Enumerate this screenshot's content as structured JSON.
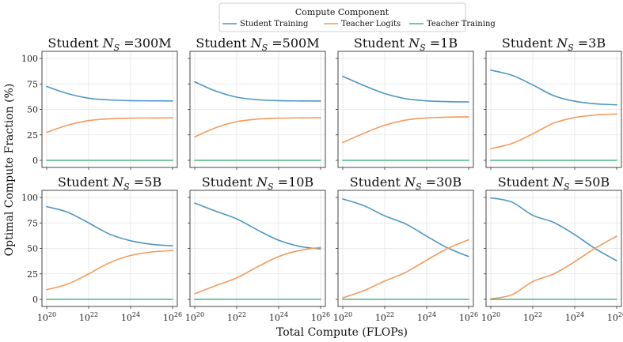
{
  "figure": {
    "xlabel": "Total Compute (FLOPs)",
    "ylabel": "Optimal Compute Fraction (%)"
  },
  "legend": {
    "title": "Compute Component",
    "entries": [
      {
        "name": "Student Training",
        "color": "#4f97c2"
      },
      {
        "name": "Teacher Logits",
        "color": "#f29b5c"
      },
      {
        "name": "Teacher Training",
        "color": "#4bb584"
      }
    ]
  },
  "chart_data": [
    {
      "type": "line",
      "title_prefix": "Student ",
      "title_var": "N",
      "title_sub": "S",
      "title_value": "=300M",
      "x": [
        20,
        21,
        22,
        23,
        24,
        25,
        26
      ],
      "xlim": [
        20,
        26
      ],
      "ylim": [
        0,
        100
      ],
      "xticks": [
        {
          "base": "10",
          "exp": "20"
        },
        {
          "base": "10",
          "exp": "22"
        },
        {
          "base": "10",
          "exp": "24"
        },
        {
          "base": "10",
          "exp": "26"
        }
      ],
      "yticks": [
        "0",
        "25",
        "50",
        "75",
        "100"
      ],
      "series": [
        {
          "name": "Student Training",
          "values": [
            72.5,
            65.5,
            61.0,
            59.3,
            58.6,
            58.4,
            58.3
          ]
        },
        {
          "name": "Teacher Logits",
          "values": [
            27.5,
            34.5,
            39.0,
            40.7,
            41.4,
            41.6,
            41.7
          ]
        },
        {
          "name": "Teacher Training",
          "values": [
            0,
            0,
            0,
            0,
            0,
            0,
            0
          ]
        }
      ]
    },
    {
      "type": "line",
      "title_prefix": "Student ",
      "title_var": "N",
      "title_sub": "S",
      "title_value": "=500M",
      "x": [
        20,
        21,
        22,
        23,
        24,
        25,
        26
      ],
      "xlim": [
        20,
        26
      ],
      "ylim": [
        0,
        100
      ],
      "xticks": [
        {
          "base": "10",
          "exp": "20"
        },
        {
          "base": "10",
          "exp": "22"
        },
        {
          "base": "10",
          "exp": "24"
        },
        {
          "base": "10",
          "exp": "26"
        }
      ],
      "yticks": [
        "0",
        "25",
        "50",
        "75",
        "100"
      ],
      "series": [
        {
          "name": "Student Training",
          "values": [
            77.0,
            68.0,
            62.0,
            59.5,
            58.6,
            58.3,
            58.2
          ]
        },
        {
          "name": "Teacher Logits",
          "values": [
            23.0,
            32.0,
            38.0,
            40.5,
            41.4,
            41.7,
            41.8
          ]
        },
        {
          "name": "Teacher Training",
          "values": [
            0,
            0,
            0,
            0,
            0,
            0,
            0
          ]
        }
      ]
    },
    {
      "type": "line",
      "title_prefix": "Student ",
      "title_var": "N",
      "title_sub": "S",
      "title_value": "=1B",
      "x": [
        20,
        21,
        22,
        23,
        24,
        25,
        26
      ],
      "xlim": [
        20,
        26
      ],
      "ylim": [
        0,
        100
      ],
      "xticks": [
        {
          "base": "10",
          "exp": "20"
        },
        {
          "base": "10",
          "exp": "22"
        },
        {
          "base": "10",
          "exp": "24"
        },
        {
          "base": "10",
          "exp": "26"
        }
      ],
      "yticks": [
        "0",
        "25",
        "50",
        "75",
        "100"
      ],
      "series": [
        {
          "name": "Student Training",
          "values": [
            82.5,
            73.5,
            65.5,
            60.5,
            58.4,
            57.6,
            57.3
          ]
        },
        {
          "name": "Teacher Logits",
          "values": [
            17.5,
            26.5,
            34.5,
            39.5,
            41.6,
            42.4,
            42.7
          ]
        },
        {
          "name": "Teacher Training",
          "values": [
            0,
            0,
            0,
            0,
            0,
            0,
            0
          ]
        }
      ]
    },
    {
      "type": "line",
      "title_prefix": "Student ",
      "title_var": "N",
      "title_sub": "S",
      "title_value": "=3B",
      "x": [
        20,
        21,
        22,
        23,
        24,
        25,
        26
      ],
      "xlim": [
        20,
        26
      ],
      "ylim": [
        0,
        100
      ],
      "xticks": [
        {
          "base": "10",
          "exp": "20"
        },
        {
          "base": "10",
          "exp": "22"
        },
        {
          "base": "10",
          "exp": "24"
        },
        {
          "base": "10",
          "exp": "26"
        }
      ],
      "yticks": [
        "0",
        "25",
        "50",
        "75",
        "100"
      ],
      "series": [
        {
          "name": "Student Training",
          "values": [
            88.5,
            83.5,
            74.0,
            63.5,
            58.0,
            55.5,
            54.5
          ]
        },
        {
          "name": "Teacher Logits",
          "values": [
            11.5,
            16.5,
            26.0,
            36.5,
            42.0,
            44.5,
            45.5
          ]
        },
        {
          "name": "Teacher Training",
          "values": [
            0,
            0,
            0,
            0,
            0,
            0,
            0
          ]
        }
      ]
    },
    {
      "type": "line",
      "title_prefix": "Student ",
      "title_var": "N",
      "title_sub": "S",
      "title_value": "=5B",
      "x": [
        20,
        21,
        22,
        23,
        24,
        25,
        26
      ],
      "xlim": [
        20,
        26
      ],
      "ylim": [
        0,
        100
      ],
      "xticks": [
        {
          "base": "10",
          "exp": "20"
        },
        {
          "base": "10",
          "exp": "22"
        },
        {
          "base": "10",
          "exp": "24"
        },
        {
          "base": "10",
          "exp": "26"
        }
      ],
      "yticks": [
        "0",
        "25",
        "50",
        "75",
        "100"
      ],
      "series": [
        {
          "name": "Student Training",
          "values": [
            91.0,
            85.5,
            75.0,
            64.0,
            57.5,
            54.0,
            52.5
          ]
        },
        {
          "name": "Teacher Logits",
          "values": [
            9.5,
            15.0,
            25.0,
            36.0,
            43.0,
            46.5,
            48.0
          ]
        },
        {
          "name": "Teacher Training",
          "values": [
            0,
            0,
            0,
            0,
            0,
            0,
            0
          ]
        }
      ]
    },
    {
      "type": "line",
      "title_prefix": "Student ",
      "title_var": "N",
      "title_sub": "S",
      "title_value": "=10B",
      "x": [
        20,
        21,
        22,
        23,
        24,
        25,
        26
      ],
      "xlim": [
        20,
        26
      ],
      "ylim": [
        0,
        100
      ],
      "xticks": [
        {
          "base": "10",
          "exp": "20"
        },
        {
          "base": "10",
          "exp": "22"
        },
        {
          "base": "10",
          "exp": "24"
        },
        {
          "base": "10",
          "exp": "26"
        }
      ],
      "yticks": [
        "0",
        "25",
        "50",
        "75",
        "100"
      ],
      "series": [
        {
          "name": "Student Training",
          "values": [
            94.5,
            86.5,
            79.0,
            68.0,
            58.0,
            52.0,
            49.5
          ]
        },
        {
          "name": "Teacher Logits",
          "values": [
            5.5,
            13.5,
            21.0,
            32.0,
            42.0,
            48.0,
            51.0
          ]
        },
        {
          "name": "Teacher Training",
          "values": [
            0,
            0,
            0,
            0,
            0,
            0,
            0
          ]
        }
      ]
    },
    {
      "type": "line",
      "title_prefix": "Student ",
      "title_var": "N",
      "title_sub": "S",
      "title_value": "=30B",
      "x": [
        20,
        21,
        22,
        23,
        24,
        25,
        26
      ],
      "xlim": [
        20,
        26
      ],
      "ylim": [
        0,
        100
      ],
      "xticks": [
        {
          "base": "10",
          "exp": "20"
        },
        {
          "base": "10",
          "exp": "22"
        },
        {
          "base": "10",
          "exp": "24"
        },
        {
          "base": "10",
          "exp": "26"
        }
      ],
      "yticks": [
        "0",
        "25",
        "50",
        "75",
        "100"
      ],
      "series": [
        {
          "name": "Student Training",
          "values": [
            98.5,
            92.0,
            82.0,
            74.0,
            62.0,
            50.5,
            42.0
          ]
        },
        {
          "name": "Teacher Logits",
          "values": [
            1.5,
            8.5,
            18.0,
            26.5,
            38.5,
            50.0,
            58.5
          ]
        },
        {
          "name": "Teacher Training",
          "values": [
            0,
            0,
            0,
            0,
            0,
            0,
            0
          ]
        }
      ]
    },
    {
      "type": "line",
      "title_prefix": "Student ",
      "title_var": "N",
      "title_sub": "S",
      "title_value": "=50B",
      "x": [
        20,
        21,
        22,
        23,
        24,
        25,
        26
      ],
      "xlim": [
        20,
        26
      ],
      "ylim": [
        0,
        100
      ],
      "xticks": [
        {
          "base": "10",
          "exp": "20"
        },
        {
          "base": "10",
          "exp": "22"
        },
        {
          "base": "10",
          "exp": "24"
        },
        {
          "base": "10",
          "exp": "26"
        }
      ],
      "yticks": [
        "0",
        "25",
        "50",
        "75",
        "100"
      ],
      "series": [
        {
          "name": "Student Training",
          "values": [
            99.5,
            95.5,
            82.5,
            75.5,
            63.5,
            49.5,
            38.0
          ]
        },
        {
          "name": "Teacher Logits",
          "values": [
            0.5,
            4.5,
            17.5,
            25.0,
            37.0,
            50.5,
            62.0
          ]
        },
        {
          "name": "Teacher Training",
          "values": [
            0,
            0,
            0,
            0,
            0,
            0,
            0
          ]
        }
      ]
    }
  ]
}
